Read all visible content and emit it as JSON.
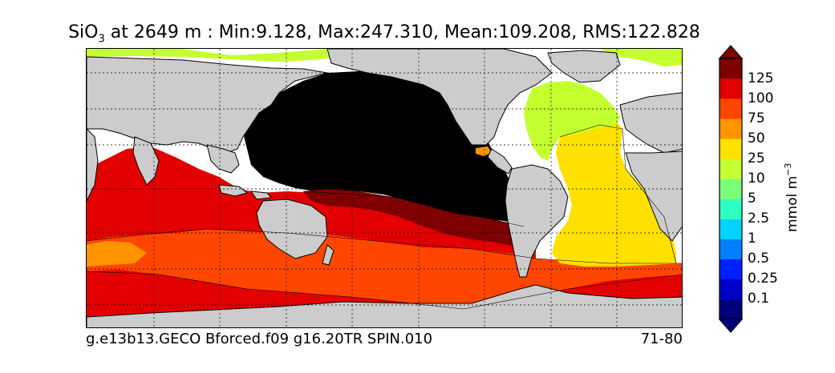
{
  "title": {
    "species_main": "SiO",
    "species_sub": "3",
    "rest": " at 2649 m : Min:9.128, Max:247.310, Mean:109.208, RMS:122.828"
  },
  "footer": {
    "case_name": "g.e13b13.GECO Bforced.f09 g16.20TR SPIN.010",
    "years": "71-80"
  },
  "colorbar": {
    "unit_main": "mmol m",
    "unit_sup": "−3",
    "ticks": [
      "0.1",
      "0.25",
      "0.5",
      "1",
      "2.5",
      "5",
      "10",
      "25",
      "50",
      "75",
      "100",
      "125"
    ],
    "colors": [
      "#00007f",
      "#0000c8",
      "#0020ff",
      "#0080ff",
      "#00d4ff",
      "#30ffc4",
      "#7cff78",
      "#c4ff30",
      "#ffe100",
      "#ff9400",
      "#ff4600",
      "#e30000",
      "#7f0000"
    ],
    "extend": "both"
  },
  "map": {
    "land_color": "#cccccc",
    "missing_color": "#ffffff",
    "gridlines": "dotted",
    "coastlines": true
  }
}
